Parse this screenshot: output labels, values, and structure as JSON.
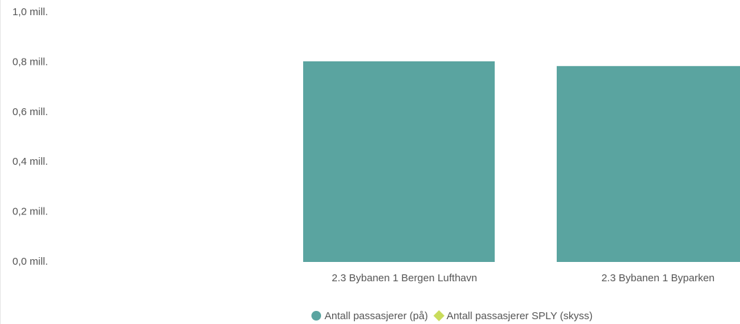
{
  "chart_data": {
    "type": "bar",
    "categories": [
      "2.3 Bybanen 1 Bergen Lufthavn",
      "2.3 Bybanen 1 Byparken"
    ],
    "series": [
      {
        "name": "Antall passasjerer (på)",
        "color": "#5aa4a0",
        "values": [
          804000,
          785000
        ]
      },
      {
        "name": "Antall passasjerer SPLY (skyss)",
        "color": "#c9dc5c",
        "values": [
          null,
          null
        ]
      }
    ],
    "ylim": [
      0,
      1000000
    ],
    "yticks": [
      {
        "value": 0,
        "label": "0,0 mill."
      },
      {
        "value": 200000,
        "label": "0,2 mill."
      },
      {
        "value": 400000,
        "label": "0,4 mill."
      },
      {
        "value": 600000,
        "label": "0,6 mill."
      },
      {
        "value": 800000,
        "label": "0,8 mill."
      },
      {
        "value": 1000000,
        "label": "1,0 mill."
      }
    ],
    "grid": false
  }
}
